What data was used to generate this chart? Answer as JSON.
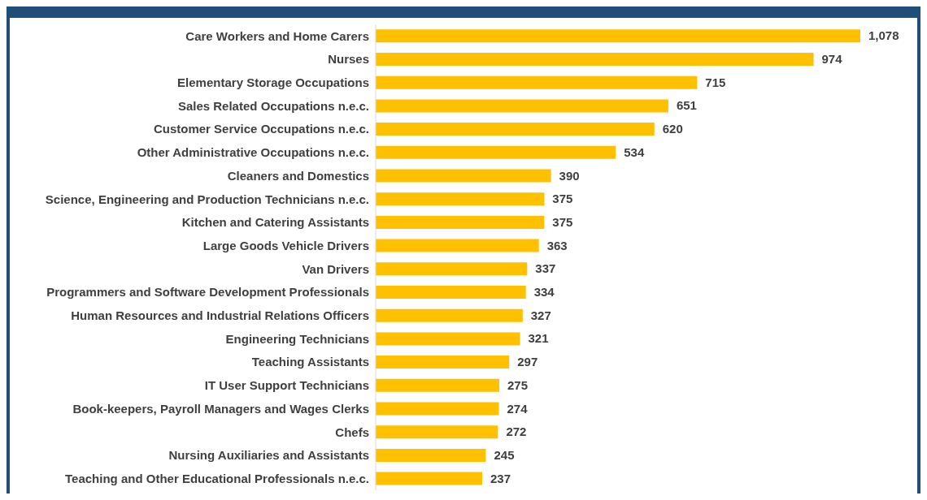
{
  "chart_data": {
    "type": "bar",
    "orientation": "horizontal",
    "categories": [
      "Care Workers and Home Carers",
      "Nurses",
      "Elementary Storage Occupations",
      "Sales Related Occupations n.e.c.",
      "Customer Service Occupations n.e.c.",
      "Other Administrative Occupations n.e.c.",
      "Cleaners and Domestics",
      "Science, Engineering and Production Technicians n.e.c.",
      "Kitchen and Catering Assistants",
      "Large Goods Vehicle Drivers",
      "Van Drivers",
      "Programmers and Software Development Professionals",
      "Human Resources and Industrial Relations Officers",
      "Engineering Technicians",
      "Teaching Assistants",
      "IT User Support Technicians",
      "Book-keepers, Payroll Managers and Wages Clerks",
      "Chefs",
      "Nursing Auxiliaries and Assistants",
      "Teaching and Other Educational Professionals n.e.c."
    ],
    "values": [
      1078,
      974,
      715,
      651,
      620,
      534,
      390,
      375,
      375,
      363,
      337,
      334,
      327,
      321,
      297,
      275,
      274,
      272,
      245,
      237
    ],
    "value_labels": [
      "1,078",
      "974",
      "715",
      "651",
      "620",
      "534",
      "390",
      "375",
      "375",
      "363",
      "337",
      "334",
      "327",
      "321",
      "297",
      "275",
      "274",
      "272",
      "245",
      "237"
    ],
    "color": "#ffc000",
    "grid": false,
    "legend": false
  }
}
